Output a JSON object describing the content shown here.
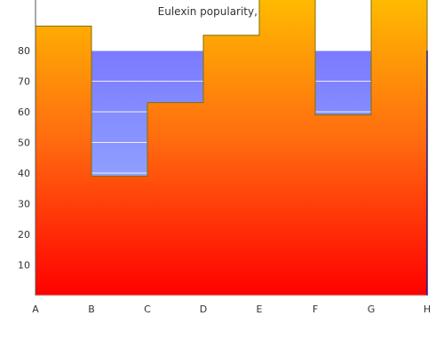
{
  "chart_data": {
    "type": "area",
    "title": "Eulexin popularity, ages",
    "xlabel": "",
    "ylabel": "",
    "categories": [
      "A",
      "B",
      "C",
      "D",
      "E",
      "F",
      "G",
      "H"
    ],
    "y_ticks": [
      10,
      20,
      30,
      40,
      50,
      60,
      70,
      80
    ],
    "ylim": [
      0,
      97
    ],
    "grid": false,
    "legend": "none",
    "series": [
      {
        "role": "upper-band",
        "step": true,
        "values": [
          80,
          80,
          80,
          80,
          80,
          80,
          80,
          80
        ],
        "gradient_colors": [
          "#7a7aff",
          "#a3c2ff"
        ]
      },
      {
        "role": "main-area",
        "step": true,
        "values": [
          88,
          39,
          63,
          85,
          100,
          59,
          100,
          0
        ],
        "gradient_colors": [
          "#ffc000",
          "#ff6a10",
          "#ff0000"
        ],
        "edge_color": "#807000"
      }
    ]
  }
}
